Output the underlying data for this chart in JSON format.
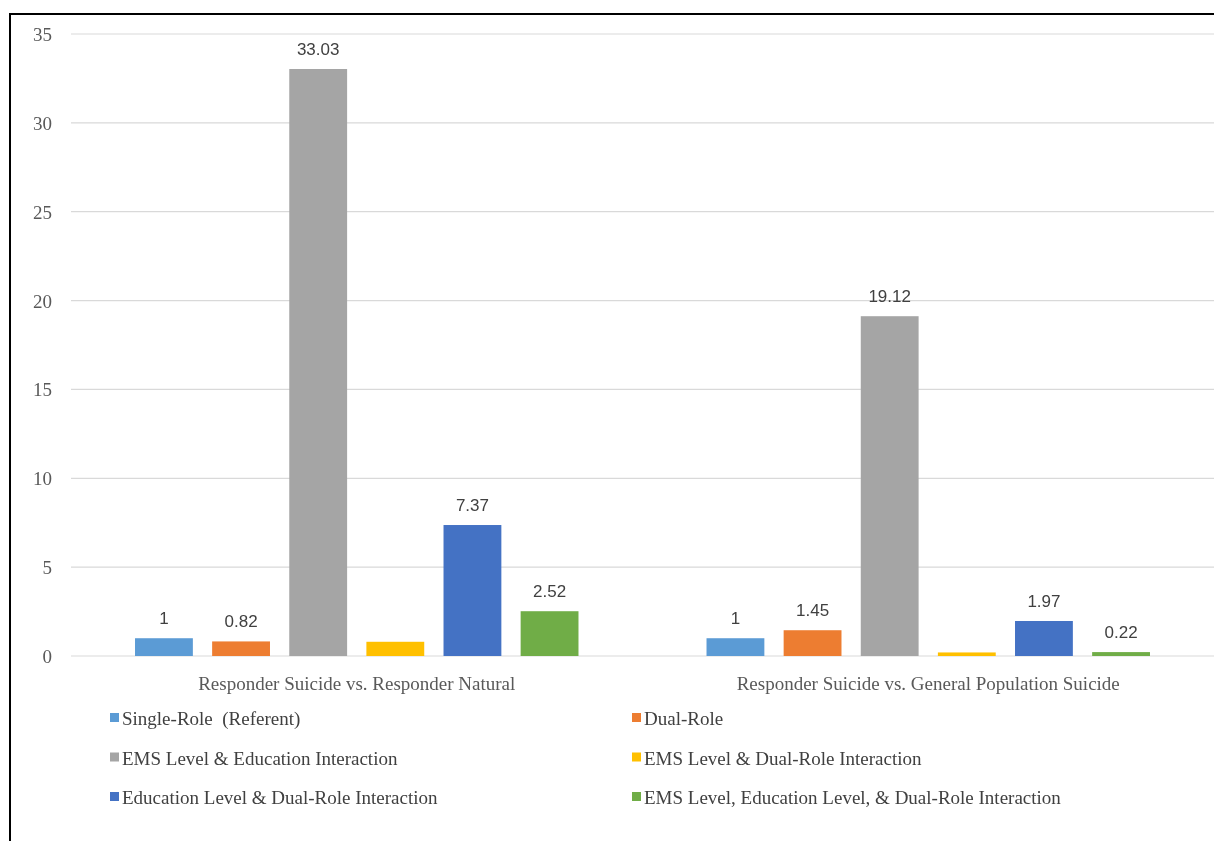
{
  "chart_data": {
    "type": "bar",
    "categories": [
      "Responder Suicide vs. Responder Natural",
      "Responder Suicide vs. General Population Suicide"
    ],
    "series": [
      {
        "name": "Single-Role  (Referent)",
        "color": "#5b9bd5",
        "values": [
          1,
          1
        ],
        "value_labels": [
          "1",
          "1"
        ]
      },
      {
        "name": "Dual-Role",
        "color": "#ed7d31",
        "values": [
          0.82,
          1.45
        ],
        "value_labels": [
          "0.82",
          "1.45"
        ]
      },
      {
        "name": "EMS Level & Education Interaction",
        "color": "#a5a5a5",
        "values": [
          33.03,
          19.12
        ],
        "value_labels": [
          "33.03",
          "19.12"
        ]
      },
      {
        "name": "EMS Level & Dual-Role Interaction",
        "color": "#ffc000",
        "values": [
          0.8,
          0.2
        ],
        "value_labels": [
          null,
          null
        ]
      },
      {
        "name": "Education Level & Dual-Role Interaction",
        "color": "#4472c4",
        "values": [
          7.37,
          1.97
        ],
        "value_labels": [
          "7.37",
          "1.97"
        ]
      },
      {
        "name": "EMS Level, Education Level, & Dual-Role Interaction",
        "color": "#70ad47",
        "values": [
          2.52,
          0.22
        ],
        "value_labels": [
          "2.52",
          "0.22"
        ]
      }
    ],
    "ylim": [
      0,
      35
    ],
    "yticks": [
      0,
      5,
      10,
      15,
      20,
      25,
      30,
      35
    ],
    "grid": "y",
    "legend": "bottom"
  }
}
